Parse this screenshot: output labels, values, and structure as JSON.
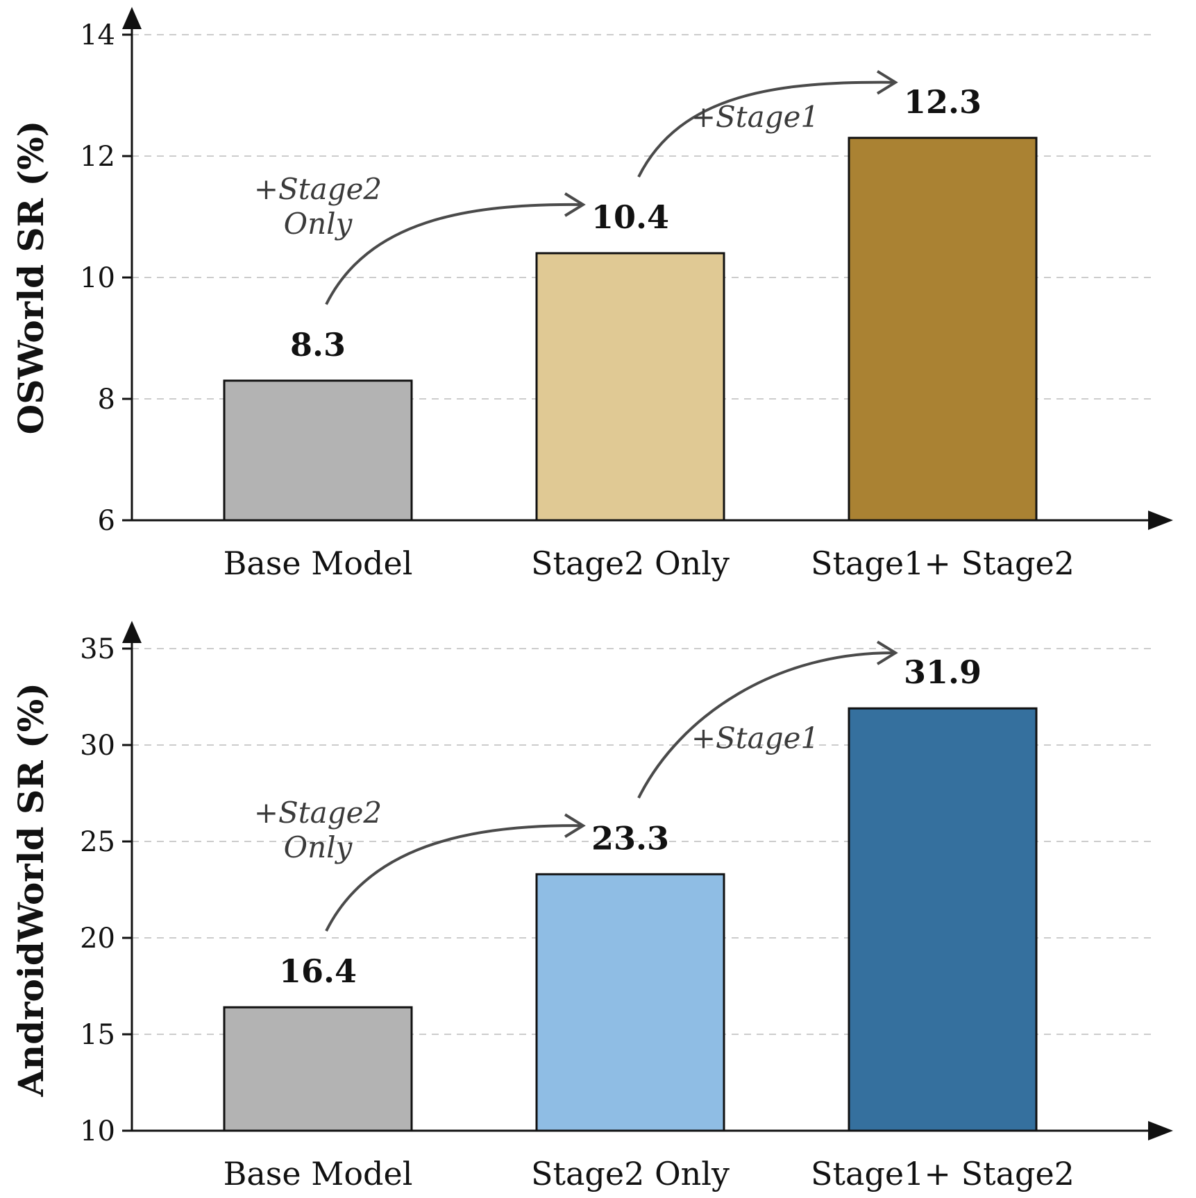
{
  "chart_data": [
    {
      "type": "bar",
      "categories": [
        "Base Model",
        "Stage2 Only",
        "Stage1+ Stage2"
      ],
      "values": [
        8.3,
        10.4,
        12.3
      ],
      "data_labels": [
        "8.3",
        "10.4",
        "12.3"
      ],
      "colors": [
        "#b3b3b3",
        "#e0c994",
        "#aa8233"
      ],
      "ylabel": "OSWorld SR (%)",
      "ylim": [
        6,
        14
      ],
      "yticks": [
        6,
        8,
        10,
        12,
        14
      ],
      "grid": true,
      "annotations": [
        {
          "lines": [
            "+Stage2",
            "Only"
          ],
          "from": "Base Model",
          "to": "Stage2 Only"
        },
        {
          "lines": [
            "+Stage1"
          ],
          "from": "Stage2 Only",
          "to": "Stage1+ Stage2"
        }
      ]
    },
    {
      "type": "bar",
      "categories": [
        "Base Model",
        "Stage2 Only",
        "Stage1+ Stage2"
      ],
      "values": [
        16.4,
        23.3,
        31.9
      ],
      "data_labels": [
        "16.4",
        "23.3",
        "31.9"
      ],
      "colors": [
        "#b3b3b3",
        "#8fbde4",
        "#35709e"
      ],
      "ylabel": "AndroidWorld SR (%)",
      "ylim": [
        10,
        35
      ],
      "yticks": [
        10,
        15,
        20,
        25,
        30,
        35
      ],
      "grid": true,
      "annotations": [
        {
          "lines": [
            "+Stage2",
            "Only"
          ],
          "from": "Base Model",
          "to": "Stage2 Only"
        },
        {
          "lines": [
            "+Stage1"
          ],
          "from": "Stage2 Only",
          "to": "Stage1+ Stage2"
        }
      ]
    }
  ]
}
